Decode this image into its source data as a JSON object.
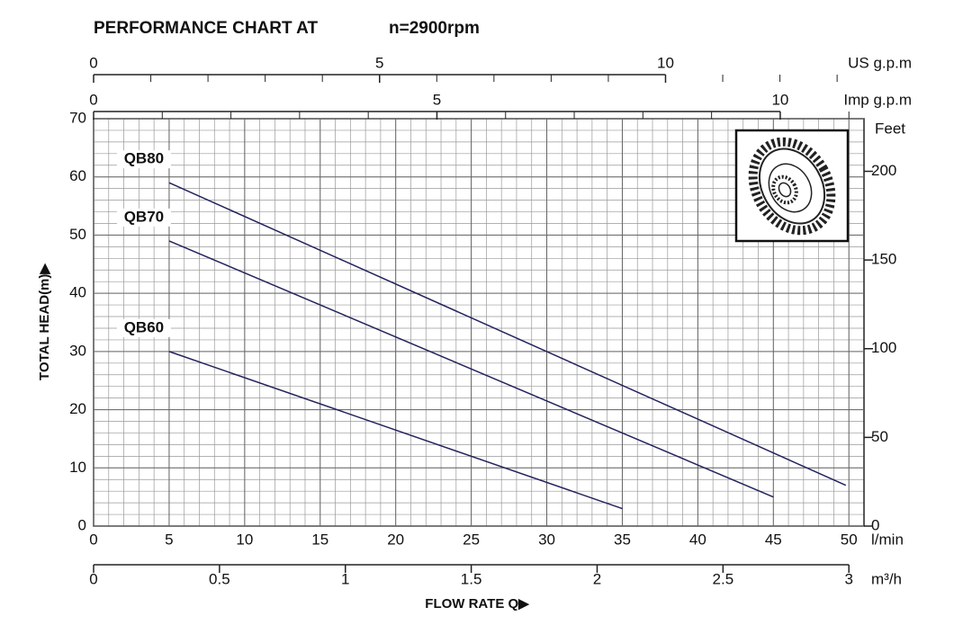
{
  "chart_data": {
    "type": "line",
    "title": "PERFORMANCE CHART AT",
    "subtitle": "n=2900rpm",
    "x_label": "FLOW RATE Q▶",
    "y_label": "TOTAL HEAD(m)▶",
    "x_unit": "l/min",
    "xlim": [
      0,
      51
    ],
    "xticks": [
      0,
      5,
      10,
      15,
      20,
      25,
      30,
      35,
      40,
      45,
      50
    ],
    "ylim": [
      0,
      70
    ],
    "yticks": [
      0,
      10,
      20,
      30,
      40,
      50,
      60,
      70
    ],
    "y2_label": "Feet",
    "y2lim": [
      0,
      229.66
    ],
    "y2ticks": [
      0,
      50,
      100,
      150,
      200
    ],
    "grid": true,
    "series": [
      {
        "name": "QB80",
        "color": "#23235e",
        "x": [
          5,
          49.8
        ],
        "values": [
          59,
          7
        ]
      },
      {
        "name": "QB70",
        "color": "#23235e",
        "x": [
          5,
          45
        ],
        "values": [
          49,
          5
        ]
      },
      {
        "name": "QB60",
        "color": "#23235e",
        "x": [
          5,
          35
        ],
        "values": [
          30,
          3
        ]
      }
    ],
    "secondary_x_axes": [
      {
        "label": "US g.p.m",
        "position": "top",
        "xlim": [
          0,
          13.47
        ],
        "xticks": [
          0,
          5,
          10
        ],
        "minor_ticks": [
          1,
          2,
          3,
          4,
          6,
          7,
          8,
          9,
          11,
          12,
          13
        ]
      },
      {
        "label": "Imp g.p.m",
        "position": "top",
        "xlim": [
          0,
          11.22
        ],
        "xticks": [
          0,
          5,
          10
        ],
        "minor_ticks": [
          1,
          2,
          3,
          4,
          6,
          7,
          8,
          9,
          11
        ]
      },
      {
        "label": "m³/h",
        "position": "bottom",
        "xlim": [
          0,
          3.06
        ],
        "xticks": [
          0,
          0.5,
          1,
          1.5,
          2,
          2.5,
          3
        ],
        "minor_ticks": []
      }
    ]
  }
}
